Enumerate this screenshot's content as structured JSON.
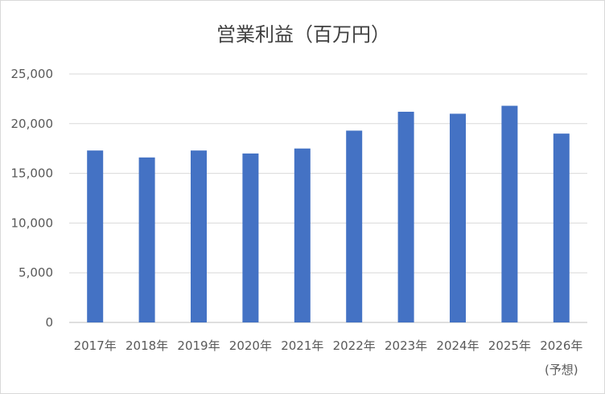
{
  "chart_data": {
    "type": "bar",
    "title": "営業利益（百万円）",
    "xlabel": "",
    "ylabel": "",
    "categories": [
      "2017年",
      "2018年",
      "2019年",
      "2020年",
      "2021年",
      "2022年",
      "2023年",
      "2024年",
      "2025年",
      "2026年"
    ],
    "category_notes": [
      "",
      "",
      "",
      "",
      "",
      "",
      "",
      "",
      "",
      "(予想)"
    ],
    "values": [
      17300,
      16600,
      17300,
      17000,
      17500,
      19300,
      21200,
      21000,
      21800,
      19000
    ],
    "ylim": [
      0,
      25000
    ],
    "yticks": [
      0,
      5000,
      10000,
      15000,
      20000,
      25000
    ],
    "ytick_labels": [
      "0",
      "5,000",
      "10,000",
      "15,000",
      "20,000",
      "25,000"
    ],
    "grid": true,
    "legend": "none",
    "bar_color": "#4472C4",
    "grid_color": "#d9d9d9",
    "axis_color": "#bfbfbf"
  }
}
